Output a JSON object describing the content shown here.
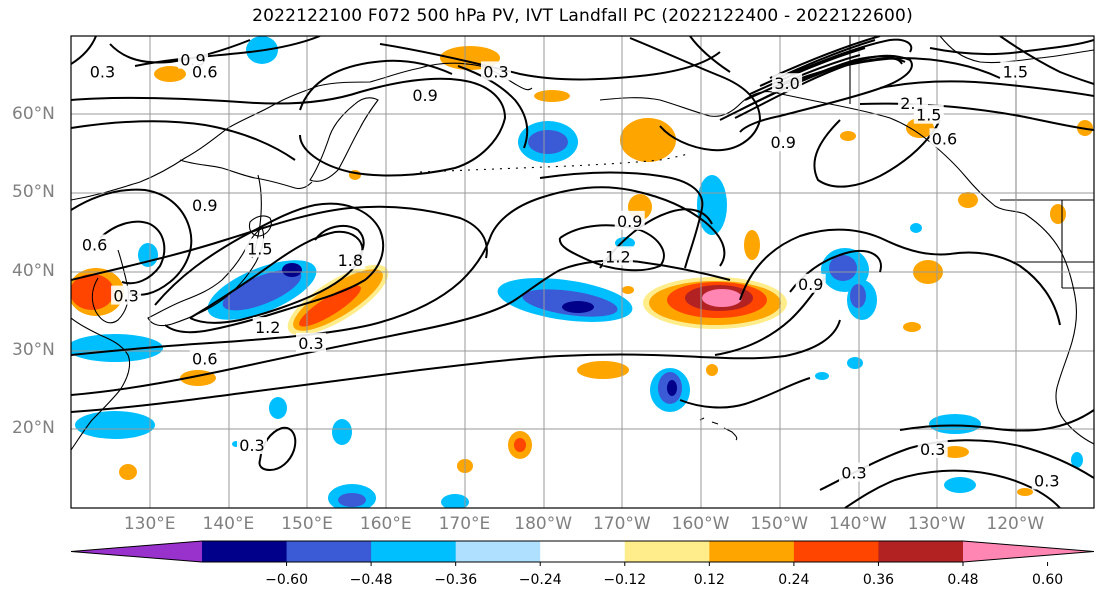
{
  "title": "2022122100 F072 500 hPa PV, IVT Landfall PC (2022122400 - 2022122600)",
  "lat_labels": [
    {
      "text": "60°N",
      "lat": 60
    },
    {
      "text": "50°N",
      "lat": 50
    },
    {
      "text": "40°N",
      "lat": 40
    },
    {
      "text": "30°N",
      "lat": 30
    },
    {
      "text": "20°N",
      "lat": 20
    }
  ],
  "lon_labels": [
    {
      "text": "130°E",
      "lon": 130
    },
    {
      "text": "140°E",
      "lon": 140
    },
    {
      "text": "150°E",
      "lon": 150
    },
    {
      "text": "160°E",
      "lon": 160
    },
    {
      "text": "170°E",
      "lon": 170
    },
    {
      "text": "180°W",
      "lon": 180
    },
    {
      "text": "170°W",
      "lon": 190
    },
    {
      "text": "160°W",
      "lon": 200
    },
    {
      "text": "150°W",
      "lon": 210
    },
    {
      "text": "140°W",
      "lon": 220
    },
    {
      "text": "130°W",
      "lon": 230
    },
    {
      "text": "120°W",
      "lon": 240
    }
  ],
  "contour_labels": [
    {
      "text": "0.9",
      "lon": 135.5,
      "lat": 67
    },
    {
      "text": "0.6",
      "lon": 137,
      "lat": 65.5
    },
    {
      "text": "0.3",
      "lon": 124,
      "lat": 65.5
    },
    {
      "text": "0.9",
      "lon": 165,
      "lat": 62.5
    },
    {
      "text": "0.3",
      "lon": 174,
      "lat": 65.5
    },
    {
      "text": "3.0",
      "lon": 211,
      "lat": 64
    },
    {
      "text": "2.1",
      "lon": 227,
      "lat": 61.5
    },
    {
      "text": "1.5",
      "lon": 229,
      "lat": 60
    },
    {
      "text": "0.6",
      "lon": 231,
      "lat": 57
    },
    {
      "text": "1.5",
      "lon": 240,
      "lat": 65.5
    },
    {
      "text": "0.9",
      "lon": 210.5,
      "lat": 56.5
    },
    {
      "text": "0.9",
      "lon": 137,
      "lat": 48.5
    },
    {
      "text": "0.6",
      "lon": 123,
      "lat": 43.5
    },
    {
      "text": "0.3",
      "lon": 127,
      "lat": 37
    },
    {
      "text": "1.5",
      "lon": 144,
      "lat": 43
    },
    {
      "text": "1.8",
      "lon": 155.5,
      "lat": 41.5
    },
    {
      "text": "1.2",
      "lon": 145,
      "lat": 33
    },
    {
      "text": "0.3",
      "lon": 150.5,
      "lat": 31
    },
    {
      "text": "0.6",
      "lon": 137,
      "lat": 29
    },
    {
      "text": "0.9",
      "lon": 191,
      "lat": 46.5
    },
    {
      "text": "1.2",
      "lon": 189.5,
      "lat": 42
    },
    {
      "text": "0.9",
      "lon": 214,
      "lat": 38.5
    },
    {
      "text": "0.3",
      "lon": 143,
      "lat": 18
    },
    {
      "text": "0.3",
      "lon": 229.5,
      "lat": 17.5
    },
    {
      "text": "0.3",
      "lon": 219.5,
      "lat": 14.5
    },
    {
      "text": "0.3",
      "lon": 244,
      "lat": 13.5
    }
  ],
  "colorbar": {
    "colors": [
      "#9932CC",
      "#00008B",
      "#3B5BD6",
      "#00BFFF",
      "#B0E0FF",
      "#FFFFFF",
      "#FFEC8B",
      "#FFA500",
      "#FF4500",
      "#B22222",
      "#FF85B3"
    ],
    "levels": [
      -0.6,
      -0.48,
      -0.36,
      -0.24,
      -0.12,
      0.12,
      0.24,
      0.36,
      0.48,
      0.6
    ],
    "tick_labels": [
      "−0.60",
      "−0.48",
      "−0.36",
      "−0.24",
      "−0.12",
      "0.12",
      "0.24",
      "0.36",
      "0.48",
      "0.60"
    ]
  }
}
